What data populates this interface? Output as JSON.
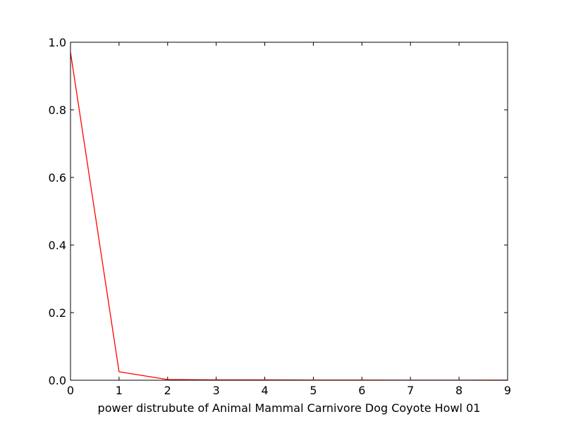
{
  "chart_data": {
    "type": "line",
    "title": "",
    "xlabel": "power distrubute of Animal Mammal Carnivore Dog Coyote Howl 01",
    "ylabel": "",
    "xlim": [
      0,
      9
    ],
    "ylim": [
      0,
      1.0
    ],
    "x_ticks": [
      "0",
      "1",
      "2",
      "3",
      "4",
      "5",
      "6",
      "7",
      "8",
      "9"
    ],
    "y_ticks": [
      "0.0",
      "0.2",
      "0.4",
      "0.6",
      "0.8",
      "1.0"
    ],
    "grid": false,
    "legend": "none",
    "series": [
      {
        "color": "#ff0000",
        "x": [
          0,
          1,
          2,
          3,
          4,
          5,
          6,
          7,
          8,
          9
        ],
        "y": [
          0.97,
          0.025,
          0.002,
          0.001,
          0.001,
          0.0005,
          0.0005,
          0.0003,
          0.0002,
          0.0001
        ]
      }
    ]
  }
}
